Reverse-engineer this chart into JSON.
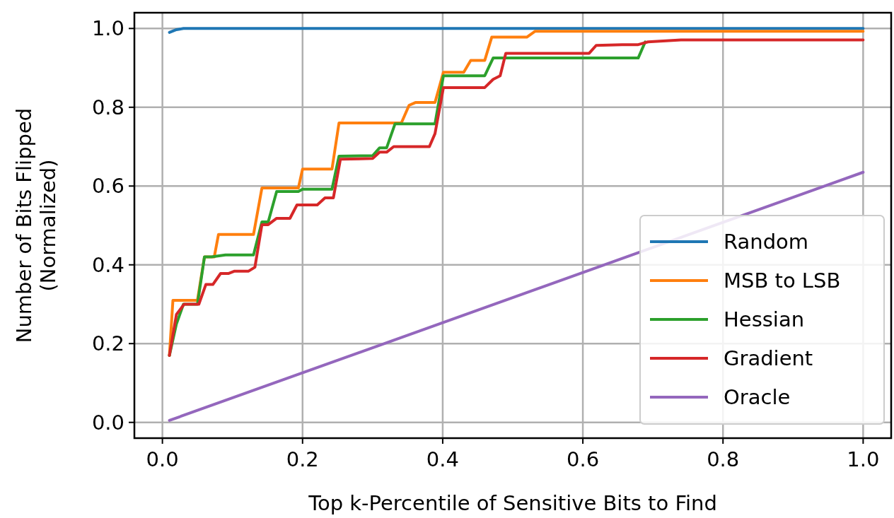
{
  "chart_data": {
    "type": "line",
    "xlabel": "Top k-Percentile of Sensitive Bits to Find",
    "ylabel": "Number of Bits Flipped\n(Normalized)",
    "xlim": [
      -0.04,
      1.04
    ],
    "ylim": [
      -0.04,
      1.04
    ],
    "xticks": [
      {
        "value": 0,
        "label": "0.0"
      },
      {
        "value": 0.2,
        "label": "0.2"
      },
      {
        "value": 0.4,
        "label": "0.4"
      },
      {
        "value": 0.6,
        "label": "0.6"
      },
      {
        "value": 0.8,
        "label": "0.8"
      },
      {
        "value": 1,
        "label": "1.0"
      }
    ],
    "yticks": [
      {
        "value": 0,
        "label": "0.0"
      },
      {
        "value": 0.2,
        "label": "0.2"
      },
      {
        "value": 0.4,
        "label": "0.4"
      },
      {
        "value": 0.6,
        "label": "0.6"
      },
      {
        "value": 0.8,
        "label": "0.8"
      },
      {
        "value": 1,
        "label": "1.0"
      }
    ],
    "grid": true,
    "legend": "bottom right",
    "marker": "none",
    "line_style": "solid",
    "series": [
      {
        "name": "Random",
        "color": "#1f77b4",
        "x": [
          0.01,
          0.02,
          0.03,
          1.0
        ],
        "values": [
          0.99,
          0.997,
          1.0,
          1.0
        ]
      },
      {
        "name": "MSB to LSB",
        "color": "#ff7f0e",
        "x": [
          0.01,
          0.015,
          0.05,
          0.06,
          0.074,
          0.08,
          0.13,
          0.142,
          0.194,
          0.2,
          0.242,
          0.252,
          0.341,
          0.352,
          0.361,
          0.389,
          0.401,
          0.43,
          0.44,
          0.46,
          0.47,
          0.52,
          0.532,
          1.0
        ],
        "values": [
          0.17,
          0.31,
          0.31,
          0.42,
          0.42,
          0.477,
          0.477,
          0.595,
          0.595,
          0.643,
          0.643,
          0.76,
          0.76,
          0.805,
          0.812,
          0.812,
          0.889,
          0.889,
          0.919,
          0.919,
          0.978,
          0.978,
          0.993,
          0.993
        ]
      },
      {
        "name": "Hessian",
        "color": "#2ca02c",
        "x": [
          0.01,
          0.02,
          0.03,
          0.05,
          0.06,
          0.07,
          0.09,
          0.13,
          0.142,
          0.151,
          0.163,
          0.194,
          0.2,
          0.242,
          0.252,
          0.3,
          0.31,
          0.32,
          0.332,
          0.389,
          0.401,
          0.46,
          0.472,
          0.679,
          0.689
        ],
        "values": [
          0.17,
          0.25,
          0.3,
          0.3,
          0.42,
          0.42,
          0.425,
          0.425,
          0.509,
          0.509,
          0.586,
          0.586,
          0.592,
          0.592,
          0.676,
          0.677,
          0.697,
          0.697,
          0.758,
          0.758,
          0.88,
          0.88,
          0.925,
          0.925,
          0.966
        ]
      },
      {
        "name": "Gradient",
        "color": "#d62728",
        "x": [
          0.01,
          0.02,
          0.031,
          0.052,
          0.062,
          0.072,
          0.083,
          0.094,
          0.103,
          0.123,
          0.132,
          0.142,
          0.151,
          0.163,
          0.182,
          0.192,
          0.221,
          0.232,
          0.244,
          0.254,
          0.3,
          0.31,
          0.32,
          0.33,
          0.381,
          0.389,
          0.401,
          0.46,
          0.472,
          0.482,
          0.49,
          0.609,
          0.619,
          0.656,
          0.679,
          0.693,
          0.74,
          1.0
        ],
        "values": [
          0.17,
          0.274,
          0.3,
          0.3,
          0.35,
          0.35,
          0.378,
          0.378,
          0.384,
          0.384,
          0.394,
          0.502,
          0.502,
          0.518,
          0.518,
          0.552,
          0.552,
          0.57,
          0.57,
          0.668,
          0.67,
          0.686,
          0.686,
          0.7,
          0.7,
          0.733,
          0.85,
          0.85,
          0.871,
          0.88,
          0.937,
          0.937,
          0.957,
          0.959,
          0.959,
          0.966,
          0.971,
          0.971
        ]
      },
      {
        "name": "Oracle",
        "color": "#9467bd",
        "x": [
          0.01,
          1.0
        ],
        "values": [
          0.005,
          0.635
        ]
      }
    ]
  }
}
